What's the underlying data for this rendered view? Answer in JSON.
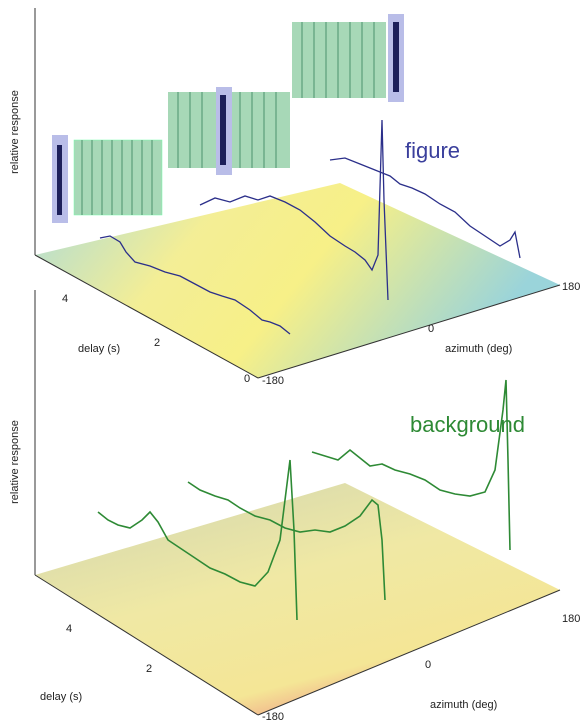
{
  "panels": [
    {
      "title": "figure",
      "y_label": "relative response",
      "delay_label": "delay (s)",
      "delay_ticks": [
        "4",
        "2",
        "0"
      ],
      "azimuth_label": "azimuth (deg)",
      "azimuth_ticks": [
        "-180",
        "0",
        "180"
      ]
    },
    {
      "title": "background",
      "y_label": "relative response",
      "delay_label": "delay (s)",
      "delay_ticks": [
        "4",
        "2"
      ],
      "azimuth_label": "azimuth (deg)",
      "azimuth_ticks": [
        "-180",
        "0",
        "180"
      ]
    }
  ]
}
